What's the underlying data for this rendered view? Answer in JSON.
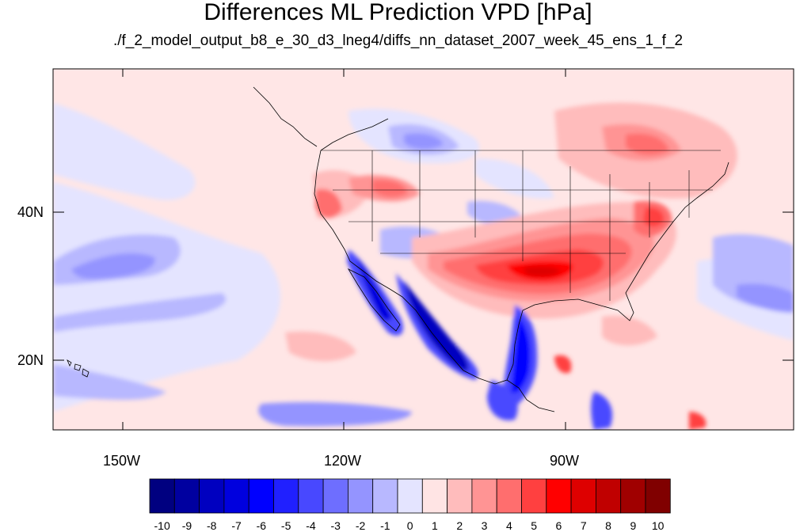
{
  "title": "Differences ML Prediction VPD [hPa]",
  "subtitle": "./f_2_model_output_b8_e_30_d3_lneg4/diffs_nn_dataset_2007_week_45_ens_1_f_2",
  "map": {
    "projection": "cylindrical-equidistant",
    "region": "North Pacific / North America",
    "lon_range": [
      -160,
      -60
    ],
    "lat_range": [
      11,
      60
    ],
    "lon_ticks": [
      "150W",
      "120W",
      "90W"
    ],
    "lat_ticks": [
      "40N",
      "20N"
    ],
    "boundaries": [
      "coastlines",
      "US state borders",
      "Canada/Mexico borders"
    ]
  },
  "colorbar": {
    "labels": [
      "-10",
      "-9",
      "-8",
      "-7",
      "-6",
      "-5",
      "-4",
      "-3",
      "-2",
      "-1",
      "0",
      "1",
      "2",
      "3",
      "4",
      "5",
      "6",
      "7",
      "8",
      "9",
      "10"
    ],
    "colors": [
      "#000080",
      "#0000a0",
      "#0000c0",
      "#0000de",
      "#0000ff",
      "#2020ff",
      "#4848ff",
      "#6e6eff",
      "#9494ff",
      "#b8b8ff",
      "#e4e4ff",
      "#ffe4e4",
      "#ffbcbc",
      "#ff9494",
      "#ff6e6e",
      "#ff4040",
      "#ff0000",
      "#de0000",
      "#c00000",
      "#a00000",
      "#800000"
    ]
  }
}
